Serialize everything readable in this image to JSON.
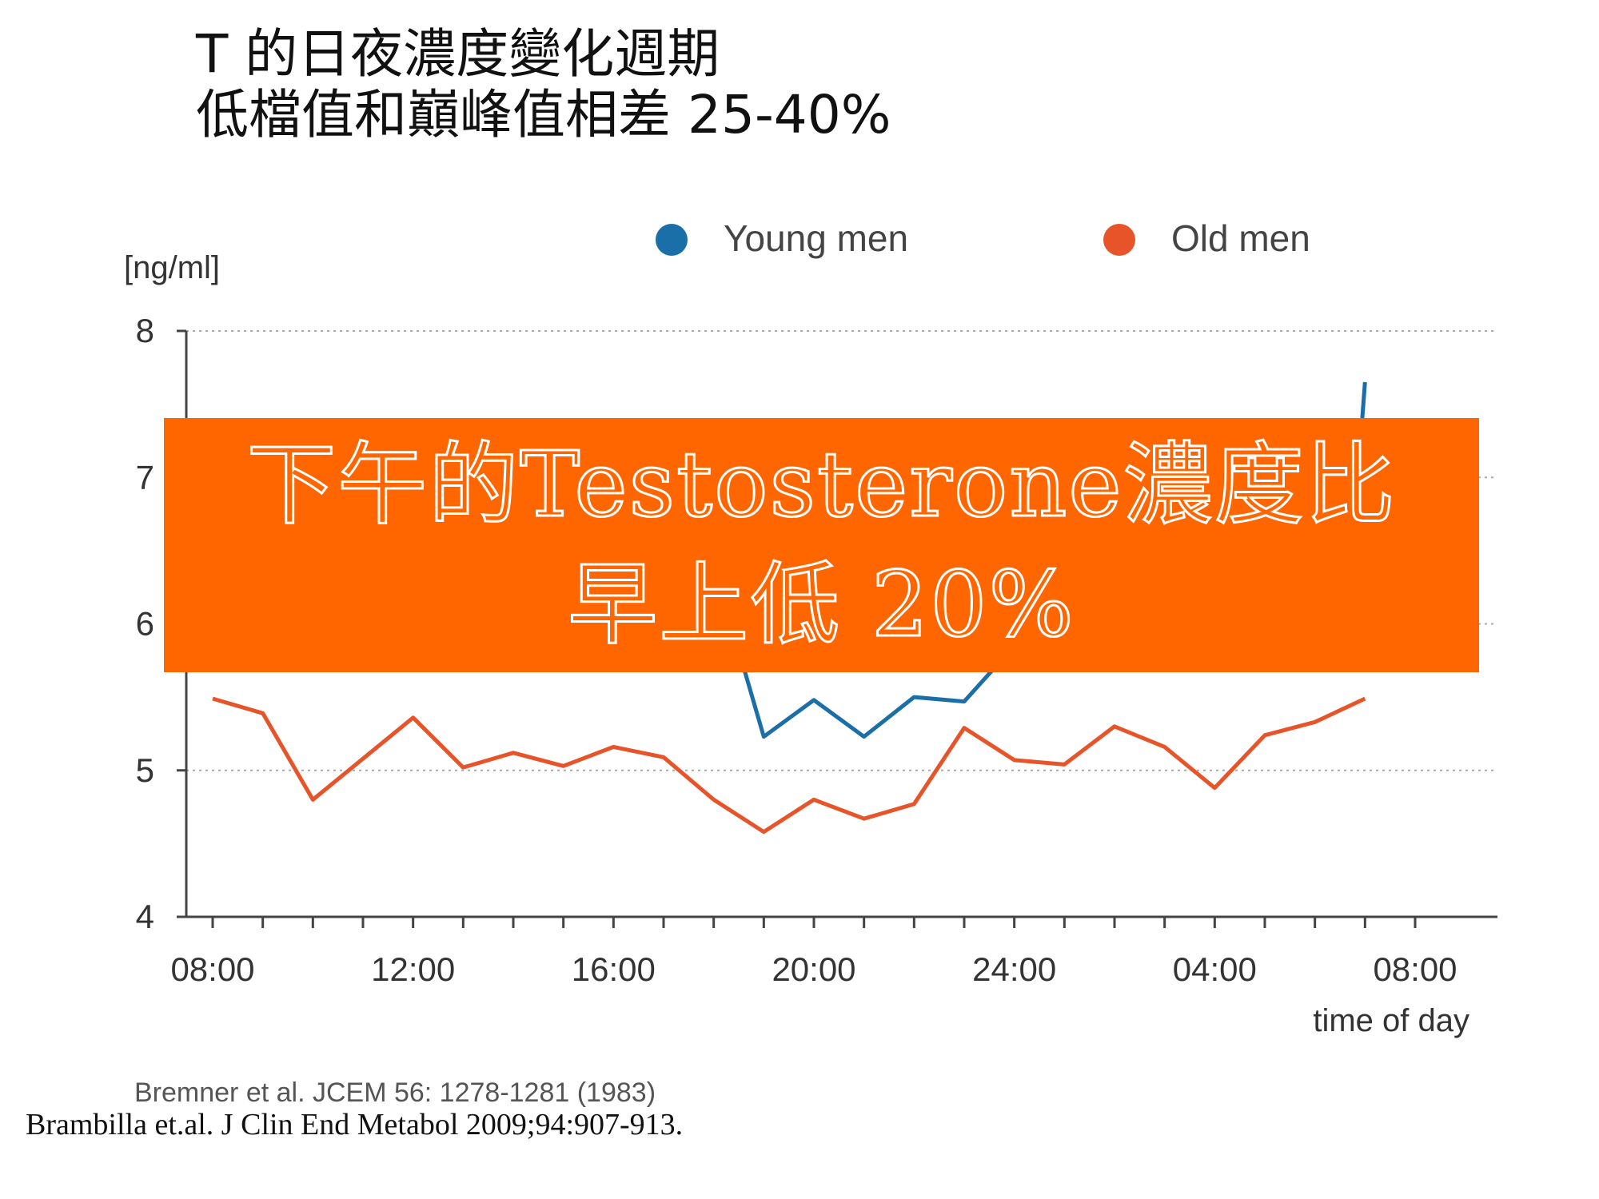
{
  "slide": {
    "title_line1": "T 的日夜濃度變化週期",
    "title_line2": "低檔值和巔峰值相差 25-40%",
    "callout_line1": "下午的Testosterone濃度比",
    "callout_line2": "早上低 20%",
    "citation": "Brambilla et.al. J Clin End Metabol 2009;94:907-913.",
    "callout_color": "#ff6600"
  },
  "chart_data": {
    "type": "line",
    "ylabel": "[ng/ml]",
    "xlabel": "time of day",
    "source": "Bremner et al. JCEM 56: 1278-1281 (1983)",
    "ylim": [
      4,
      8
    ],
    "yticks": [
      4,
      5,
      6,
      7,
      8
    ],
    "xlim_hours": [
      8,
      32
    ],
    "xticks": [
      8,
      12,
      16,
      20,
      24,
      28,
      32
    ],
    "xtick_labels": [
      "08:00",
      "12:00",
      "16:00",
      "20:00",
      "24:00",
      "04:00",
      "08:00"
    ],
    "grid": "horizontal dotted",
    "legend_position": "top",
    "series": [
      {
        "name": "Young men",
        "color": "#1a6fa8",
        "x": [
          18.6,
          19,
          20,
          21,
          22,
          23,
          24,
          30.9,
          31
        ],
        "y": [
          5.7,
          5.23,
          5.48,
          5.23,
          5.5,
          5.47,
          5.85,
          7.2,
          7.65
        ]
      },
      {
        "name": "Old men",
        "color": "#e8542a",
        "x": [
          8,
          9,
          10,
          12,
          13,
          14,
          15,
          16,
          17,
          18,
          19,
          20,
          21,
          22,
          23,
          24,
          25,
          26,
          27,
          28,
          29,
          30,
          31
        ],
        "y": [
          5.49,
          5.39,
          4.8,
          5.36,
          5.02,
          5.12,
          5.03,
          5.16,
          5.09,
          4.8,
          4.58,
          4.8,
          4.67,
          4.77,
          5.29,
          5.07,
          5.04,
          5.3,
          5.16,
          4.88,
          5.24,
          5.33,
          5.49
        ]
      }
    ]
  }
}
